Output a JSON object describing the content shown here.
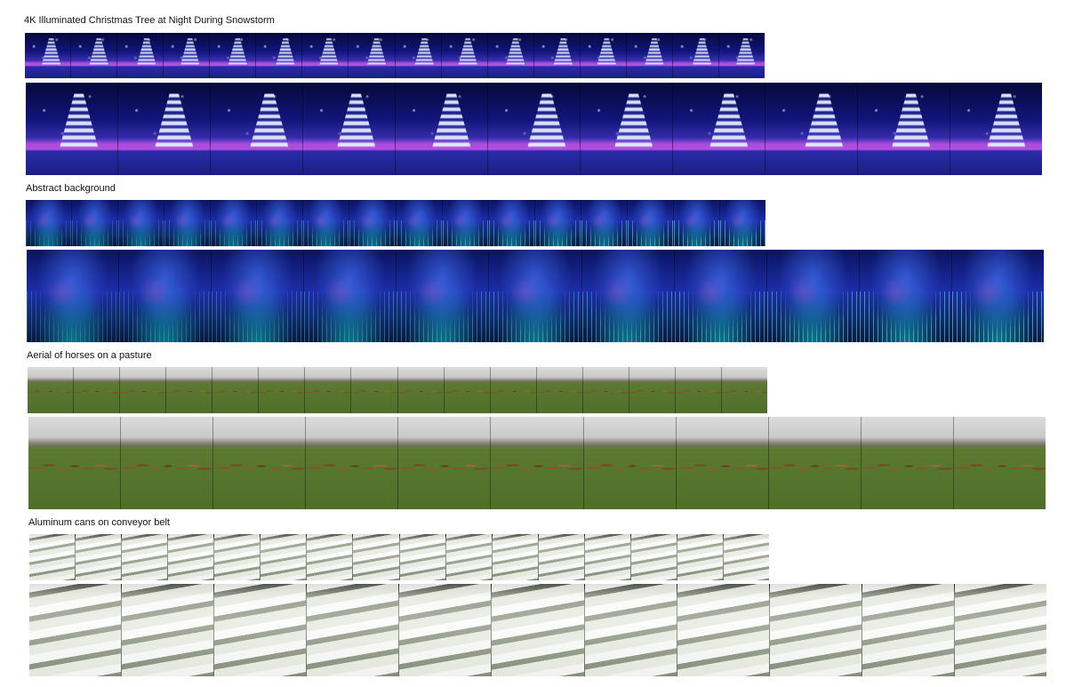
{
  "sections": [
    {
      "title": "4K Illuminated Christmas Tree at Night During Snowstorm",
      "style": "xmas"
    },
    {
      "title": "Abstract background",
      "style": "abs"
    },
    {
      "title": "Aerial of horses on a pasture",
      "style": "horse"
    },
    {
      "title": "Aluminum cans on conveyor belt",
      "style": "cans"
    }
  ],
  "frames_small": 16,
  "frames_large": 11
}
